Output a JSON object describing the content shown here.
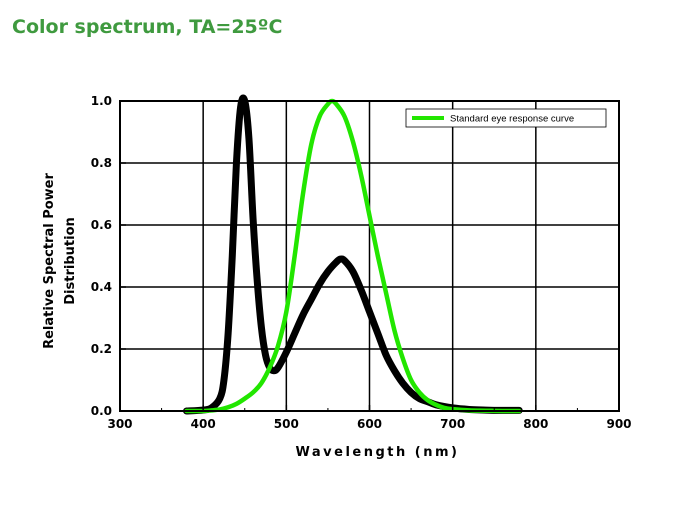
{
  "page": {
    "title": "Color spectrum, TA=25ºC"
  },
  "chart_data": {
    "type": "line",
    "title": "Color spectrum, TA=25ºC",
    "xlabel": "Wavelength (nm)",
    "ylabel": [
      "Relative Spectral Power",
      "Distribution"
    ],
    "xlim": [
      300,
      900
    ],
    "ylim": [
      0,
      1.0
    ],
    "xticks": [
      300,
      400,
      500,
      600,
      700,
      800,
      900
    ],
    "yticks": [
      0.0,
      0.2,
      0.4,
      0.6,
      0.8,
      1.0
    ],
    "xtick_labels": [
      "300",
      "400",
      "500",
      "600",
      "700",
      "800",
      "900"
    ],
    "ytick_labels": [
      "0.0",
      "0.2",
      "0.4",
      "0.6",
      "0.8",
      "1.0"
    ],
    "grid": true,
    "legend_position": "top-right",
    "series": [
      {
        "name": "",
        "color": "#000000",
        "x": [
          380,
          400,
          410,
          420,
          425,
          430,
          435,
          440,
          445,
          450,
          455,
          460,
          465,
          470,
          475,
          480,
          485,
          490,
          500,
          510,
          520,
          530,
          540,
          550,
          560,
          565,
          570,
          580,
          590,
          600,
          610,
          620,
          630,
          640,
          650,
          660,
          670,
          680,
          700,
          720,
          740,
          760,
          780
        ],
        "y": [
          0.0,
          0.003,
          0.01,
          0.04,
          0.1,
          0.25,
          0.5,
          0.8,
          0.98,
          1.0,
          0.88,
          0.62,
          0.42,
          0.27,
          0.18,
          0.14,
          0.13,
          0.14,
          0.19,
          0.25,
          0.31,
          0.36,
          0.41,
          0.45,
          0.48,
          0.49,
          0.485,
          0.45,
          0.39,
          0.32,
          0.25,
          0.18,
          0.13,
          0.09,
          0.06,
          0.04,
          0.03,
          0.02,
          0.01,
          0.005,
          0.003,
          0.002,
          0.002
        ]
      },
      {
        "name": "Standard eye response curve",
        "color": "#22e600",
        "x": [
          380,
          400,
          410,
          420,
          430,
          440,
          450,
          460,
          470,
          480,
          490,
          500,
          510,
          520,
          530,
          540,
          550,
          555,
          560,
          570,
          580,
          590,
          600,
          610,
          620,
          630,
          640,
          650,
          660,
          670,
          680,
          690,
          700,
          720,
          740,
          760,
          780
        ],
        "y": [
          0.0,
          0.0,
          0.002,
          0.005,
          0.012,
          0.023,
          0.04,
          0.06,
          0.09,
          0.14,
          0.21,
          0.32,
          0.5,
          0.7,
          0.86,
          0.95,
          0.99,
          1.0,
          0.99,
          0.95,
          0.87,
          0.76,
          0.63,
          0.5,
          0.38,
          0.26,
          0.17,
          0.1,
          0.06,
          0.035,
          0.02,
          0.01,
          0.006,
          0.002,
          0.001,
          0.0,
          0.0
        ]
      }
    ]
  }
}
